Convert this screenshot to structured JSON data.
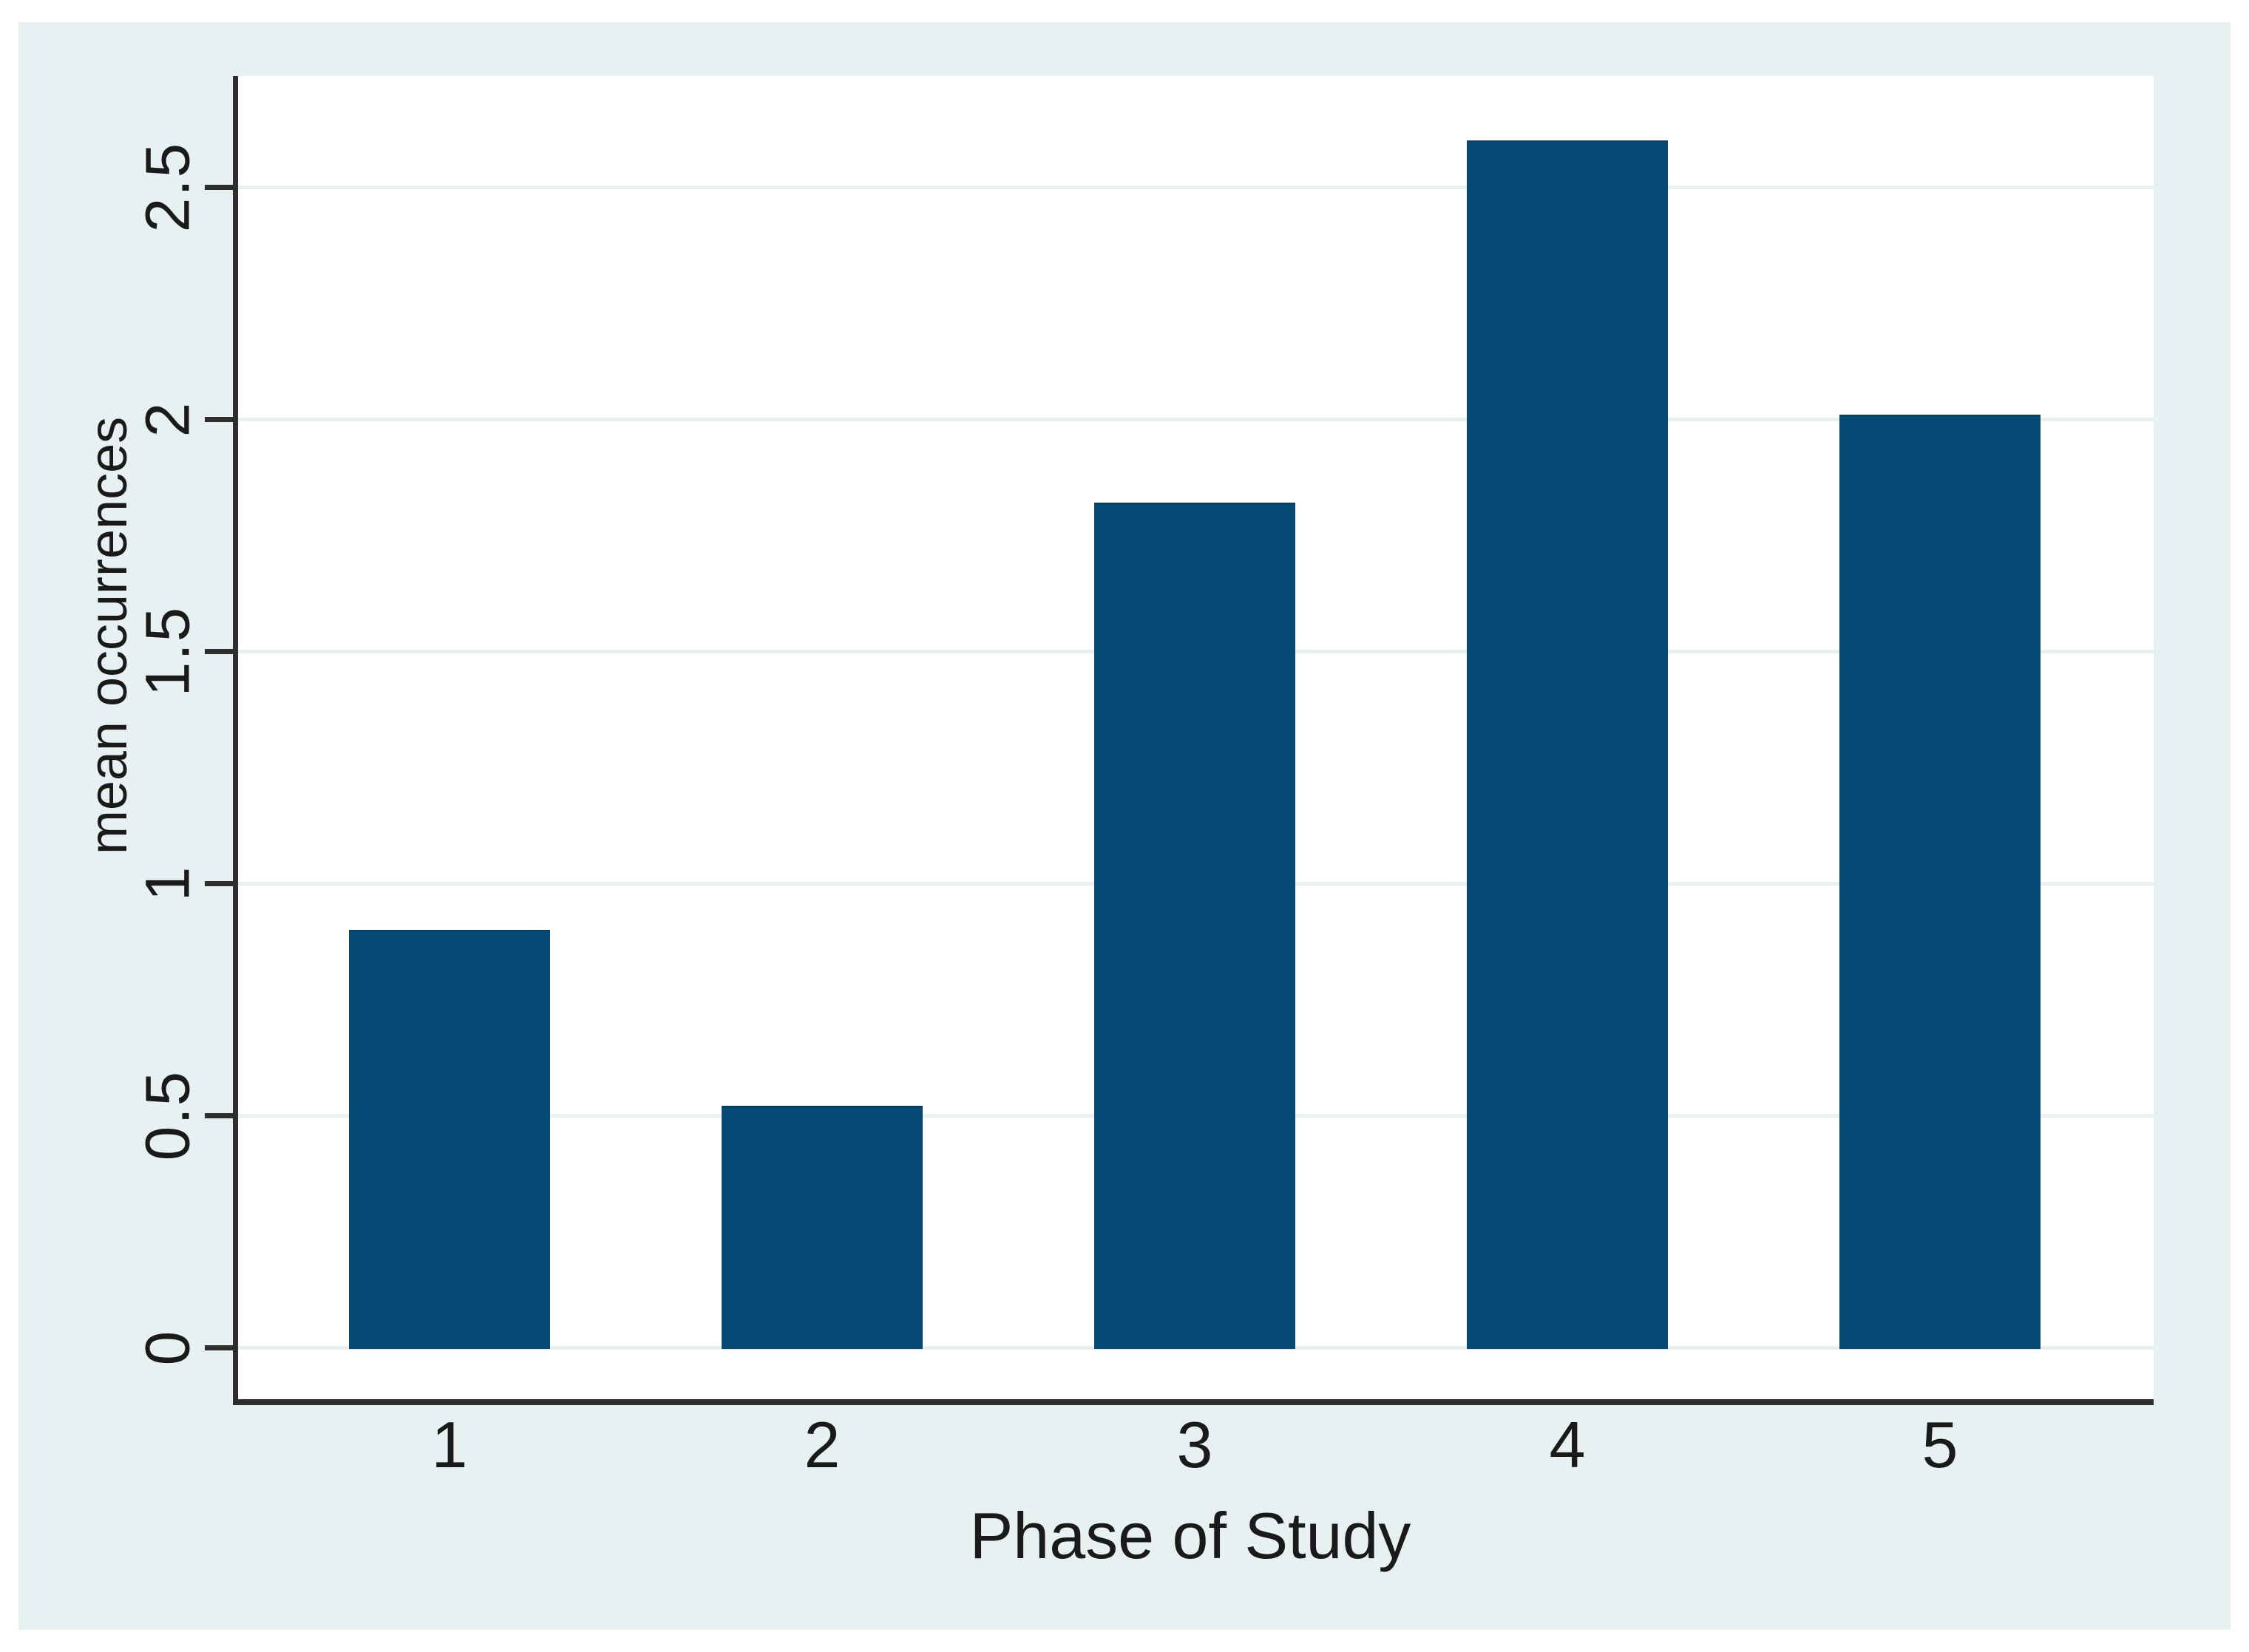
{
  "figure": {
    "background_color": "#e7f1f2",
    "plot_background_color": "#ffffff",
    "bar_color": "#054a74",
    "bar_border_color": "#053e61",
    "axis_color": "#2e2e2e",
    "grid_color": "#e8f0f2",
    "text_color": "#1a1a1a"
  },
  "chart_data": {
    "type": "bar",
    "categories": [
      "1",
      "2",
      "3",
      "4",
      "5"
    ],
    "values": [
      0.9,
      0.52,
      1.82,
      2.6,
      2.01
    ],
    "title": "",
    "xlabel": "Phase of Study",
    "ylabel": "mean occurrences",
    "yticks": [
      0,
      0.5,
      1,
      1.5,
      2,
      2.5
    ],
    "ytick_labels": [
      "0",
      "0.5",
      "1",
      "1.5",
      "2",
      "2.5"
    ],
    "ylim": [
      -0.12,
      2.74
    ],
    "grid": true,
    "legend_position": "none"
  }
}
